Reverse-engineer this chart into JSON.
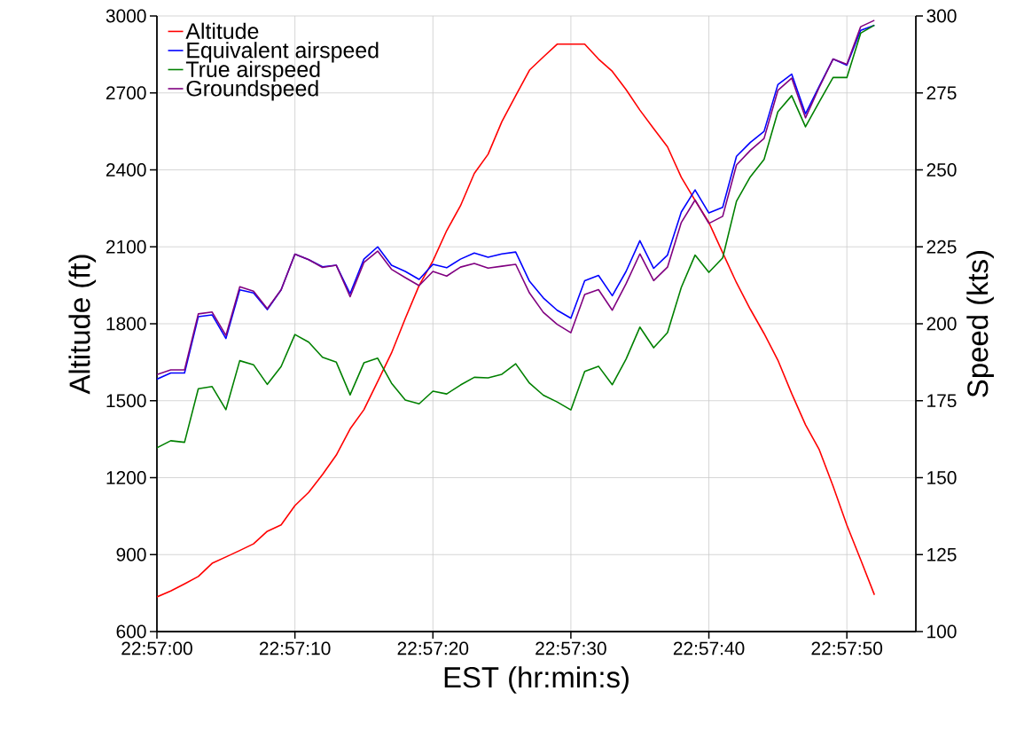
{
  "chart_data": {
    "type": "line",
    "xlabel": "EST (hr:min:s)",
    "ylabel": "Altitude (ft)",
    "y2label": "Speed (kts)",
    "x": [
      22.95,
      22.950278,
      22.950556,
      22.950833,
      22.951111,
      22.951389,
      22.951667,
      22.951944,
      22.952222,
      22.9525,
      22.952778,
      22.953056,
      22.953333,
      22.953611,
      22.953889,
      22.954167,
      22.954444,
      22.954722,
      22.955,
      22.955278,
      22.955556,
      22.955833,
      22.956111,
      22.956389,
      22.956667,
      22.956944,
      22.957222,
      22.9575,
      22.957778,
      22.958056,
      22.958333,
      22.958611,
      22.958889,
      22.959167,
      22.959444,
      22.959722,
      22.96,
      22.960278,
      22.960556,
      22.960833,
      22.961111,
      22.961389,
      22.961667,
      22.961944,
      22.962222,
      22.9625,
      22.962778,
      22.963056,
      22.963333,
      22.963611,
      22.963889,
      22.964167,
      22.964444
    ],
    "xlim": [
      22.95,
      22.965278
    ],
    "xticks": [
      {
        "value": 22.95,
        "label": "22:57:00"
      },
      {
        "value": 22.952778,
        "label": "22:57:10"
      },
      {
        "value": 22.955556,
        "label": "22:57:20"
      },
      {
        "value": 22.958333,
        "label": "22:57:30"
      },
      {
        "value": 22.961111,
        "label": "22:57:40"
      },
      {
        "value": 22.963889,
        "label": "22:57:50"
      }
    ],
    "ylim": [
      600,
      3000
    ],
    "yticks": [
      600,
      900,
      1200,
      1500,
      1800,
      2100,
      2400,
      2700,
      3000
    ],
    "y2lim": [
      100,
      300
    ],
    "y2ticks": [
      100,
      125,
      150,
      175,
      200,
      225,
      250,
      275,
      300
    ],
    "grid": true,
    "legend": "top left",
    "series": [
      {
        "name": "Altitude",
        "color": "#ff0000",
        "values": [
          735,
          758,
          786,
          815,
          866,
          891,
          916,
          942,
          991,
          1016,
          1091,
          1143,
          1212,
          1288,
          1390,
          1465,
          1575,
          1686,
          1821,
          1949,
          2045,
          2163,
          2260,
          2386,
          2461,
          2588,
          2689,
          2789,
          2840,
          2890,
          2890,
          2890,
          2832,
          2784,
          2713,
          2633,
          2561,
          2490,
          2371,
          2281,
          2195,
          2077,
          1960,
          1857,
          1762,
          1658,
          1528,
          1406,
          1309,
          1167,
          1015,
          880,
          743
        ]
      },
      {
        "name": "Equivalent airspeed",
        "color": "#0000ff",
        "axis": "y2",
        "values": [
          182,
          184,
          184,
          202.3,
          202.9,
          195.2,
          211,
          210,
          204.6,
          211,
          222.6,
          220.8,
          218.5,
          219,
          209.8,
          221,
          225,
          219,
          217,
          214.4,
          219.3,
          218.2,
          221,
          223,
          221.6,
          222.7,
          223.3,
          213.8,
          208.4,
          204.4,
          201.8,
          214,
          215.7,
          209.1,
          217,
          227,
          218,
          222.3,
          236.3,
          243.5,
          236,
          237.8,
          254.4,
          258.9,
          262.5,
          277.7,
          281.1,
          268.2,
          277.2,
          286,
          284,
          295.3,
          297
        ]
      },
      {
        "name": "True airspeed",
        "color": "#008000",
        "axis": "y2",
        "values": [
          159.7,
          162,
          161.5,
          178.9,
          179.6,
          172.1,
          188,
          186.7,
          180.3,
          186.1,
          196.5,
          194,
          189.1,
          187.5,
          176.9,
          187.3,
          188.8,
          180.7,
          175.2,
          174,
          178.1,
          177.2,
          180.1,
          182.6,
          182.4,
          183.6,
          187,
          180.7,
          176.8,
          174.6,
          172,
          184.5,
          186.2,
          180.2,
          188.5,
          198.9,
          192.2,
          197.1,
          211.8,
          222.3,
          216.7,
          221.4,
          239.8,
          247.7,
          253.4,
          268.9,
          274.1,
          264,
          272.1,
          280,
          280,
          294.4,
          297
        ]
      },
      {
        "name": "Groundspeed",
        "color": "#800080",
        "axis": "y2",
        "values": [
          183.5,
          185,
          185,
          203.2,
          203.8,
          196.2,
          212,
          210.6,
          204.9,
          211,
          222.6,
          220.8,
          218.3,
          219,
          208.8,
          219.9,
          223.6,
          217.7,
          215,
          212.4,
          217,
          215.5,
          218.4,
          219.6,
          218.1,
          218.7,
          219.3,
          210,
          203.7,
          199.8,
          197.1,
          209.5,
          211.1,
          204.4,
          213,
          222.7,
          214,
          218.4,
          232.9,
          240.2,
          232.6,
          234.9,
          251.6,
          256.3,
          260.2,
          275.8,
          279.8,
          266.9,
          276.8,
          286,
          284.3,
          296.5,
          298.6
        ]
      }
    ]
  }
}
